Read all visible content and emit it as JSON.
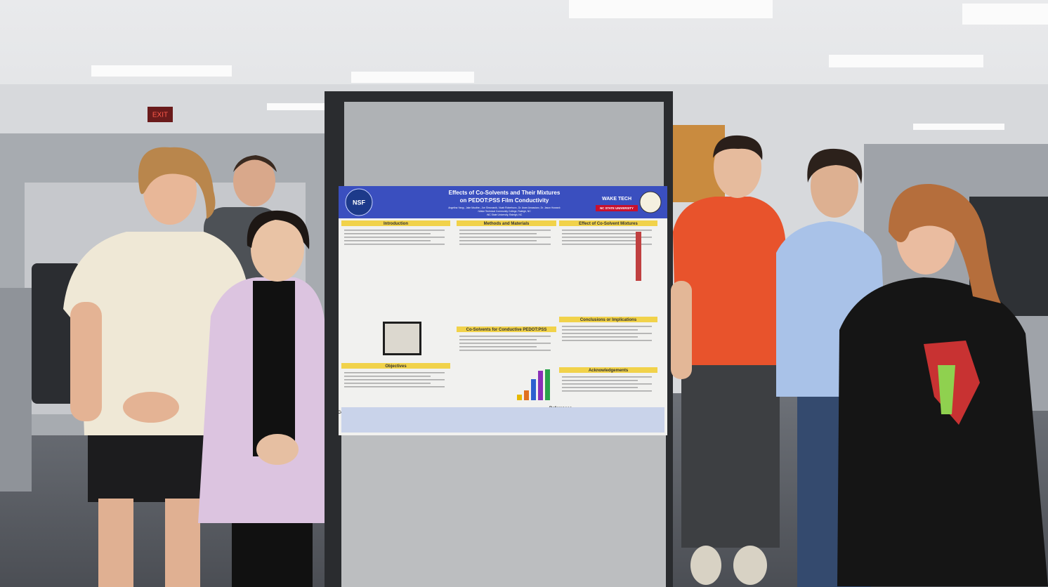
{
  "scene": {
    "exit_sign": "EXIT",
    "poster": {
      "title_line_1": "Effects of Co-Solvents and Their Mixtures",
      "title_line_2": "on PEDOT:PSS Film Conductivity",
      "authors": "Angelina Yang¹, Jake Mauthe¹, Joe Simonardi¹, Noah Robertson¹, Dr. Aram Amassian², Dr. Jason Howard¹",
      "affiliation_1": "¹Wake Technical Community College, Raleigh, NC",
      "affiliation_2": "²NC State University, Raleigh, NC",
      "logo_left": "NSF",
      "logo_right_1": "WAKE TECH",
      "logo_right_2": "NC STATE UNIVERSITY",
      "sections": [
        "Introduction",
        "Methods and Materials",
        "Effect of Co-Solvent Mixtures",
        "Objectives",
        "Co-Solvents for Conductive PEDOT:PSS",
        "Conclusions or Implications",
        "Acknowledgements",
        "Contact",
        "References"
      ]
    }
  }
}
